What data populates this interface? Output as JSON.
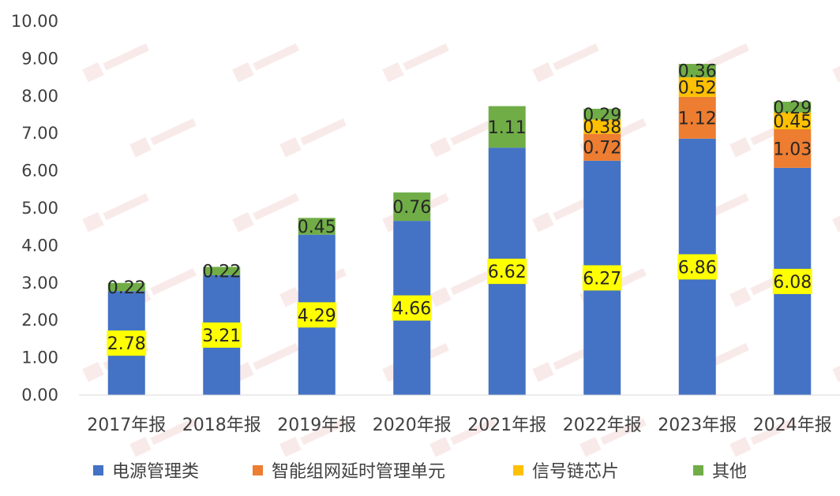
{
  "chart_data": {
    "type": "bar",
    "stacked": true,
    "categories": [
      "2017年报",
      "2018年报",
      "2019年报",
      "2020年报",
      "2021年报",
      "2022年报",
      "2023年报",
      "2024年报"
    ],
    "ylim": [
      0,
      10
    ],
    "yticks": [
      "0.00",
      "1.00",
      "2.00",
      "3.00",
      "4.00",
      "5.00",
      "6.00",
      "7.00",
      "8.00",
      "9.00",
      "10.00"
    ],
    "grid": false,
    "legend_position": "bottom",
    "series": [
      {
        "name": "电源管理类",
        "color": "#4472C4",
        "values": [
          2.78,
          3.21,
          4.29,
          4.66,
          6.62,
          6.27,
          6.86,
          6.08
        ]
      },
      {
        "name": "智能组网延时管理单元",
        "color": "#ED7D31",
        "values": [
          null,
          null,
          null,
          null,
          null,
          0.72,
          1.12,
          1.03
        ]
      },
      {
        "name": "信号链芯片",
        "color": "#FFC000",
        "values": [
          null,
          null,
          null,
          null,
          null,
          0.38,
          0.52,
          0.45
        ]
      },
      {
        "name": "其他",
        "color": "#70AD47",
        "values": [
          0.22,
          0.22,
          0.45,
          0.76,
          1.11,
          0.29,
          0.36,
          0.29
        ]
      }
    ],
    "value_label_highlight": "#FFFF00"
  }
}
